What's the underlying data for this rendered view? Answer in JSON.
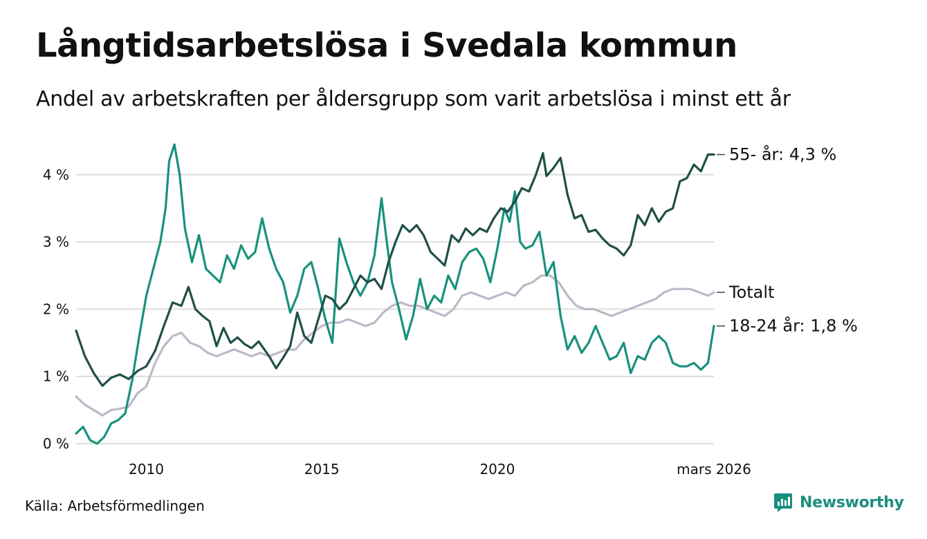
{
  "chart_data": {
    "type": "line",
    "title": "Långtidsarbetslösa i Svedala kommun",
    "subtitle": "Andel av arbetskraften per åldersgrupp som varit arbetslösa i minst ett år",
    "xlabel": "",
    "ylabel": "",
    "x_range": [
      2008.0,
      2026.17
    ],
    "ylim": [
      0,
      4.5
    ],
    "y_ticks": [
      {
        "value": 0,
        "label": "0 %"
      },
      {
        "value": 1,
        "label": "1 %"
      },
      {
        "value": 2,
        "label": "2 %"
      },
      {
        "value": 3,
        "label": "3 %"
      },
      {
        "value": 4,
        "label": "4 %"
      }
    ],
    "x_ticks": [
      {
        "value": 2010,
        "label": "2010"
      },
      {
        "value": 2015,
        "label": "2015"
      },
      {
        "value": 2020,
        "label": "2020"
      },
      {
        "value": 2026.17,
        "label": "mars 2026"
      }
    ],
    "grid": true,
    "series": [
      {
        "name": "55- år",
        "end_label": "55- år: 4,3 %",
        "color": "#1f4f47",
        "points": [
          [
            2008.0,
            1.68
          ],
          [
            2008.25,
            1.3
          ],
          [
            2008.5,
            1.05
          ],
          [
            2008.75,
            0.86
          ],
          [
            2009.0,
            0.98
          ],
          [
            2009.25,
            1.03
          ],
          [
            2009.5,
            0.96
          ],
          [
            2009.75,
            1.08
          ],
          [
            2010.0,
            1.15
          ],
          [
            2010.25,
            1.38
          ],
          [
            2010.5,
            1.75
          ],
          [
            2010.75,
            2.1
          ],
          [
            2011.0,
            2.05
          ],
          [
            2011.2,
            2.33
          ],
          [
            2011.4,
            2.0
          ],
          [
            2011.6,
            1.9
          ],
          [
            2011.8,
            1.82
          ],
          [
            2012.0,
            1.45
          ],
          [
            2012.2,
            1.72
          ],
          [
            2012.4,
            1.5
          ],
          [
            2012.6,
            1.58
          ],
          [
            2012.8,
            1.48
          ],
          [
            2013.0,
            1.42
          ],
          [
            2013.2,
            1.52
          ],
          [
            2013.5,
            1.3
          ],
          [
            2013.7,
            1.12
          ],
          [
            2013.9,
            1.28
          ],
          [
            2014.1,
            1.45
          ],
          [
            2014.3,
            1.95
          ],
          [
            2014.5,
            1.6
          ],
          [
            2014.7,
            1.5
          ],
          [
            2014.9,
            1.85
          ],
          [
            2015.1,
            2.2
          ],
          [
            2015.3,
            2.15
          ],
          [
            2015.5,
            2.0
          ],
          [
            2015.7,
            2.1
          ],
          [
            2015.9,
            2.3
          ],
          [
            2016.1,
            2.5
          ],
          [
            2016.3,
            2.4
          ],
          [
            2016.5,
            2.45
          ],
          [
            2016.7,
            2.3
          ],
          [
            2016.9,
            2.7
          ],
          [
            2017.1,
            3.0
          ],
          [
            2017.3,
            3.25
          ],
          [
            2017.5,
            3.15
          ],
          [
            2017.7,
            3.25
          ],
          [
            2017.9,
            3.1
          ],
          [
            2018.1,
            2.85
          ],
          [
            2018.3,
            2.75
          ],
          [
            2018.5,
            2.65
          ],
          [
            2018.7,
            3.1
          ],
          [
            2018.9,
            3.0
          ],
          [
            2019.1,
            3.2
          ],
          [
            2019.3,
            3.1
          ],
          [
            2019.5,
            3.2
          ],
          [
            2019.7,
            3.15
          ],
          [
            2019.9,
            3.35
          ],
          [
            2020.1,
            3.5
          ],
          [
            2020.3,
            3.45
          ],
          [
            2020.5,
            3.6
          ],
          [
            2020.7,
            3.8
          ],
          [
            2020.9,
            3.75
          ],
          [
            2021.1,
            4.0
          ],
          [
            2021.3,
            4.32
          ],
          [
            2021.4,
            3.98
          ],
          [
            2021.6,
            4.1
          ],
          [
            2021.8,
            4.25
          ],
          [
            2022.0,
            3.7
          ],
          [
            2022.2,
            3.35
          ],
          [
            2022.4,
            3.4
          ],
          [
            2022.6,
            3.15
          ],
          [
            2022.8,
            3.18
          ],
          [
            2023.0,
            3.05
          ],
          [
            2023.2,
            2.95
          ],
          [
            2023.4,
            2.9
          ],
          [
            2023.6,
            2.8
          ],
          [
            2023.8,
            2.95
          ],
          [
            2024.0,
            3.4
          ],
          [
            2024.2,
            3.25
          ],
          [
            2024.4,
            3.5
          ],
          [
            2024.6,
            3.3
          ],
          [
            2024.8,
            3.45
          ],
          [
            2025.0,
            3.5
          ],
          [
            2025.2,
            3.9
          ],
          [
            2025.4,
            3.95
          ],
          [
            2025.6,
            4.15
          ],
          [
            2025.8,
            4.05
          ],
          [
            2026.0,
            4.3
          ],
          [
            2026.17,
            4.3
          ]
        ]
      },
      {
        "name": "Totalt",
        "end_label": "Totalt",
        "color": "#bdb8c8",
        "points": [
          [
            2008.0,
            0.7
          ],
          [
            2008.25,
            0.58
          ],
          [
            2008.5,
            0.5
          ],
          [
            2008.75,
            0.42
          ],
          [
            2009.0,
            0.5
          ],
          [
            2009.25,
            0.52
          ],
          [
            2009.5,
            0.55
          ],
          [
            2009.75,
            0.75
          ],
          [
            2010.0,
            0.85
          ],
          [
            2010.25,
            1.2
          ],
          [
            2010.5,
            1.45
          ],
          [
            2010.75,
            1.6
          ],
          [
            2011.0,
            1.65
          ],
          [
            2011.25,
            1.5
          ],
          [
            2011.5,
            1.45
          ],
          [
            2011.75,
            1.35
          ],
          [
            2012.0,
            1.3
          ],
          [
            2012.25,
            1.35
          ],
          [
            2012.5,
            1.4
          ],
          [
            2012.75,
            1.35
          ],
          [
            2013.0,
            1.3
          ],
          [
            2013.25,
            1.35
          ],
          [
            2013.5,
            1.3
          ],
          [
            2013.75,
            1.35
          ],
          [
            2014.0,
            1.4
          ],
          [
            2014.25,
            1.4
          ],
          [
            2014.5,
            1.55
          ],
          [
            2014.75,
            1.65
          ],
          [
            2015.0,
            1.75
          ],
          [
            2015.25,
            1.8
          ],
          [
            2015.5,
            1.8
          ],
          [
            2015.75,
            1.85
          ],
          [
            2016.0,
            1.8
          ],
          [
            2016.25,
            1.75
          ],
          [
            2016.5,
            1.8
          ],
          [
            2016.75,
            1.95
          ],
          [
            2017.0,
            2.05
          ],
          [
            2017.25,
            2.1
          ],
          [
            2017.5,
            2.05
          ],
          [
            2017.75,
            2.05
          ],
          [
            2018.0,
            2.0
          ],
          [
            2018.25,
            1.95
          ],
          [
            2018.5,
            1.9
          ],
          [
            2018.75,
            2.0
          ],
          [
            2019.0,
            2.2
          ],
          [
            2019.25,
            2.25
          ],
          [
            2019.5,
            2.2
          ],
          [
            2019.75,
            2.15
          ],
          [
            2020.0,
            2.2
          ],
          [
            2020.25,
            2.25
          ],
          [
            2020.5,
            2.2
          ],
          [
            2020.75,
            2.35
          ],
          [
            2021.0,
            2.4
          ],
          [
            2021.25,
            2.5
          ],
          [
            2021.5,
            2.5
          ],
          [
            2021.75,
            2.4
          ],
          [
            2022.0,
            2.2
          ],
          [
            2022.25,
            2.05
          ],
          [
            2022.5,
            2.0
          ],
          [
            2022.75,
            2.0
          ],
          [
            2023.0,
            1.95
          ],
          [
            2023.25,
            1.9
          ],
          [
            2023.5,
            1.95
          ],
          [
            2023.75,
            2.0
          ],
          [
            2024.0,
            2.05
          ],
          [
            2024.25,
            2.1
          ],
          [
            2024.5,
            2.15
          ],
          [
            2024.75,
            2.25
          ],
          [
            2025.0,
            2.3
          ],
          [
            2025.25,
            2.3
          ],
          [
            2025.5,
            2.3
          ],
          [
            2025.75,
            2.25
          ],
          [
            2026.0,
            2.2
          ],
          [
            2026.17,
            2.25
          ]
        ]
      },
      {
        "name": "18-24 år",
        "end_label": "18-24 år: 1,8 %",
        "color": "#17917d",
        "points": [
          [
            2008.0,
            0.15
          ],
          [
            2008.2,
            0.25
          ],
          [
            2008.4,
            0.05
          ],
          [
            2008.6,
            0.0
          ],
          [
            2008.8,
            0.1
          ],
          [
            2009.0,
            0.3
          ],
          [
            2009.2,
            0.35
          ],
          [
            2009.4,
            0.45
          ],
          [
            2009.6,
            0.95
          ],
          [
            2009.8,
            1.6
          ],
          [
            2010.0,
            2.2
          ],
          [
            2010.2,
            2.6
          ],
          [
            2010.4,
            3.0
          ],
          [
            2010.55,
            3.5
          ],
          [
            2010.65,
            4.2
          ],
          [
            2010.8,
            4.45
          ],
          [
            2010.95,
            4.0
          ],
          [
            2011.1,
            3.2
          ],
          [
            2011.3,
            2.7
          ],
          [
            2011.5,
            3.1
          ],
          [
            2011.7,
            2.6
          ],
          [
            2011.9,
            2.5
          ],
          [
            2012.1,
            2.4
          ],
          [
            2012.3,
            2.8
          ],
          [
            2012.5,
            2.6
          ],
          [
            2012.7,
            2.95
          ],
          [
            2012.9,
            2.75
          ],
          [
            2013.1,
            2.85
          ],
          [
            2013.3,
            3.35
          ],
          [
            2013.5,
            2.9
          ],
          [
            2013.7,
            2.6
          ],
          [
            2013.9,
            2.4
          ],
          [
            2014.1,
            1.95
          ],
          [
            2014.3,
            2.2
          ],
          [
            2014.5,
            2.6
          ],
          [
            2014.7,
            2.7
          ],
          [
            2014.9,
            2.3
          ],
          [
            2015.1,
            1.85
          ],
          [
            2015.3,
            1.5
          ],
          [
            2015.5,
            3.05
          ],
          [
            2015.7,
            2.7
          ],
          [
            2015.9,
            2.4
          ],
          [
            2016.1,
            2.2
          ],
          [
            2016.3,
            2.4
          ],
          [
            2016.5,
            2.8
          ],
          [
            2016.7,
            3.65
          ],
          [
            2016.85,
            3.0
          ],
          [
            2017.0,
            2.4
          ],
          [
            2017.2,
            2.0
          ],
          [
            2017.4,
            1.55
          ],
          [
            2017.6,
            1.9
          ],
          [
            2017.8,
            2.45
          ],
          [
            2018.0,
            2.0
          ],
          [
            2018.2,
            2.2
          ],
          [
            2018.4,
            2.1
          ],
          [
            2018.6,
            2.5
          ],
          [
            2018.8,
            2.3
          ],
          [
            2019.0,
            2.7
          ],
          [
            2019.2,
            2.85
          ],
          [
            2019.4,
            2.9
          ],
          [
            2019.6,
            2.75
          ],
          [
            2019.8,
            2.4
          ],
          [
            2020.0,
            2.9
          ],
          [
            2020.2,
            3.5
          ],
          [
            2020.35,
            3.3
          ],
          [
            2020.5,
            3.75
          ],
          [
            2020.65,
            3.0
          ],
          [
            2020.8,
            2.9
          ],
          [
            2021.0,
            2.95
          ],
          [
            2021.2,
            3.15
          ],
          [
            2021.4,
            2.5
          ],
          [
            2021.6,
            2.7
          ],
          [
            2021.8,
            1.9
          ],
          [
            2022.0,
            1.4
          ],
          [
            2022.2,
            1.6
          ],
          [
            2022.4,
            1.35
          ],
          [
            2022.6,
            1.5
          ],
          [
            2022.8,
            1.75
          ],
          [
            2023.0,
            1.5
          ],
          [
            2023.2,
            1.25
          ],
          [
            2023.4,
            1.3
          ],
          [
            2023.6,
            1.5
          ],
          [
            2023.8,
            1.05
          ],
          [
            2024.0,
            1.3
          ],
          [
            2024.2,
            1.25
          ],
          [
            2024.4,
            1.5
          ],
          [
            2024.6,
            1.6
          ],
          [
            2024.8,
            1.5
          ],
          [
            2025.0,
            1.2
          ],
          [
            2025.2,
            1.15
          ],
          [
            2025.4,
            1.15
          ],
          [
            2025.6,
            1.2
          ],
          [
            2025.8,
            1.1
          ],
          [
            2026.0,
            1.2
          ],
          [
            2026.17,
            1.75
          ]
        ]
      }
    ]
  },
  "source": "Källa: Arbetsförmedlingen",
  "brand": {
    "name": "Newsworthy",
    "color": "#1a8f7e"
  }
}
